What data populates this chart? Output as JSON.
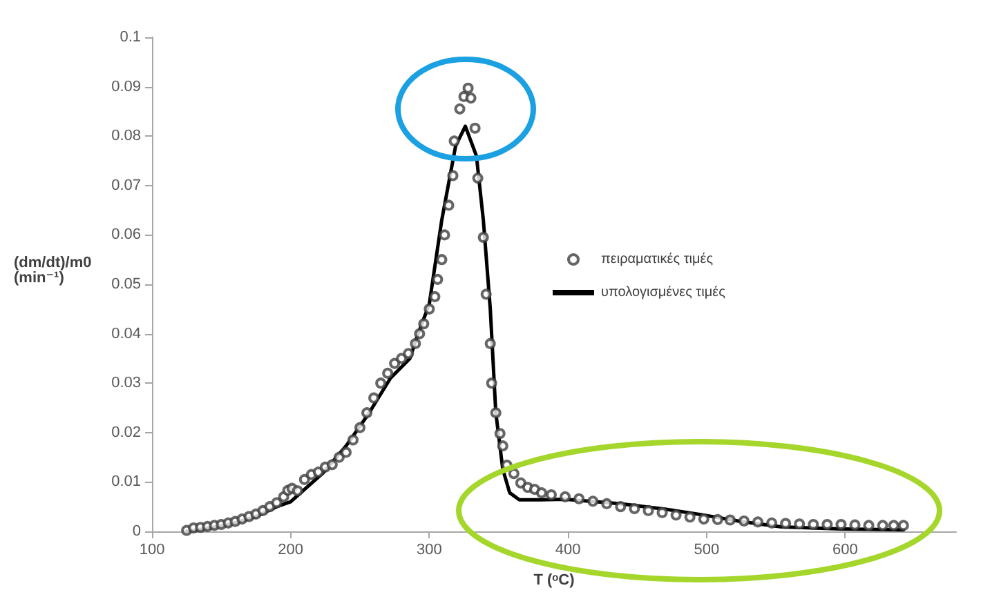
{
  "chart_data": {
    "type": "scatter",
    "xlabel": "T (ᵒC)",
    "ylabel": "(dm/dt)/m0 (min⁻¹)",
    "xlim": [
      100,
      680
    ],
    "xticks": [
      100,
      200,
      300,
      400,
      500,
      600
    ],
    "ylim": [
      0,
      0.1
    ],
    "yticks": [
      0,
      0.01,
      0.02,
      0.03,
      0.04,
      0.05,
      0.06,
      0.07,
      0.08,
      0.09,
      0.1
    ],
    "grid": false,
    "legend": "right",
    "series": [
      {
        "name": "πειραματικές τιμές",
        "marker": "circle",
        "color": "#404040",
        "x": [
          125,
          130,
          135,
          140,
          145,
          150,
          155,
          160,
          165,
          170,
          175,
          180,
          185,
          190,
          195,
          198,
          201,
          205,
          210,
          215,
          220,
          225,
          230,
          235,
          240,
          245,
          250,
          255,
          260,
          265,
          270,
          275,
          280,
          285,
          290,
          293,
          296,
          300,
          304,
          306,
          309,
          311,
          314,
          317,
          318,
          322,
          325,
          328,
          330,
          333,
          335,
          339,
          341,
          344,
          345,
          348,
          351,
          353,
          356,
          361,
          366,
          371,
          376,
          381,
          388,
          398,
          408,
          418,
          428,
          438,
          448,
          458,
          468,
          478,
          488,
          498,
          508,
          517,
          527,
          537,
          547,
          557,
          567,
          577,
          587,
          597,
          607,
          617,
          627,
          635,
          642
        ],
        "values": [
          0.0002,
          0.0007,
          0.0008,
          0.001,
          0.0012,
          0.0014,
          0.0017,
          0.002,
          0.0025,
          0.003,
          0.0035,
          0.0042,
          0.005,
          0.0058,
          0.007,
          0.0083,
          0.0087,
          0.0082,
          0.0105,
          0.0115,
          0.012,
          0.013,
          0.0135,
          0.015,
          0.016,
          0.0185,
          0.021,
          0.024,
          0.027,
          0.03,
          0.032,
          0.034,
          0.035,
          0.036,
          0.038,
          0.04,
          0.042,
          0.045,
          0.0475,
          0.051,
          0.055,
          0.06,
          0.066,
          0.072,
          0.079,
          0.0855,
          0.088,
          0.0897,
          0.0877,
          0.0816,
          0.0715,
          0.0595,
          0.048,
          0.038,
          0.03,
          0.024,
          0.0198,
          0.0173,
          0.0134,
          0.0117,
          0.0098,
          0.0089,
          0.0085,
          0.0078,
          0.0074,
          0.007,
          0.0066,
          0.0061,
          0.0056,
          0.005,
          0.0046,
          0.0042,
          0.0038,
          0.0033,
          0.0029,
          0.0025,
          0.0024,
          0.0023,
          0.0021,
          0.0019,
          0.0017,
          0.0016,
          0.0015,
          0.0014,
          0.0014,
          0.0014,
          0.0013,
          0.0012,
          0.0012,
          0.0012,
          0.0012
        ]
      },
      {
        "name": "υπολογισμένες τιμές",
        "type": "line",
        "marker": "none",
        "line_style": "solid",
        "color": "#000000",
        "x": [
          125,
          140,
          156,
          175,
          190,
          200,
          212,
          223,
          240,
          256,
          272,
          286,
          292,
          300,
          309,
          319,
          326,
          334,
          339,
          344,
          348,
          353,
          358,
          365,
          380,
          398,
          420,
          438,
          470,
          498,
          525,
          554,
          597,
          642
        ],
        "values": [
          0,
          0.0006,
          0.0014,
          0.003,
          0.005,
          0.006,
          0.009,
          0.0117,
          0.0173,
          0.0237,
          0.031,
          0.035,
          0.04,
          0.046,
          0.063,
          0.078,
          0.082,
          0.076,
          0.063,
          0.045,
          0.024,
          0.0126,
          0.0078,
          0.0064,
          0.0064,
          0.0065,
          0.006,
          0.0056,
          0.0045,
          0.0033,
          0.002,
          0.0009,
          0.0005,
          0.0003
        ]
      }
    ]
  }
}
